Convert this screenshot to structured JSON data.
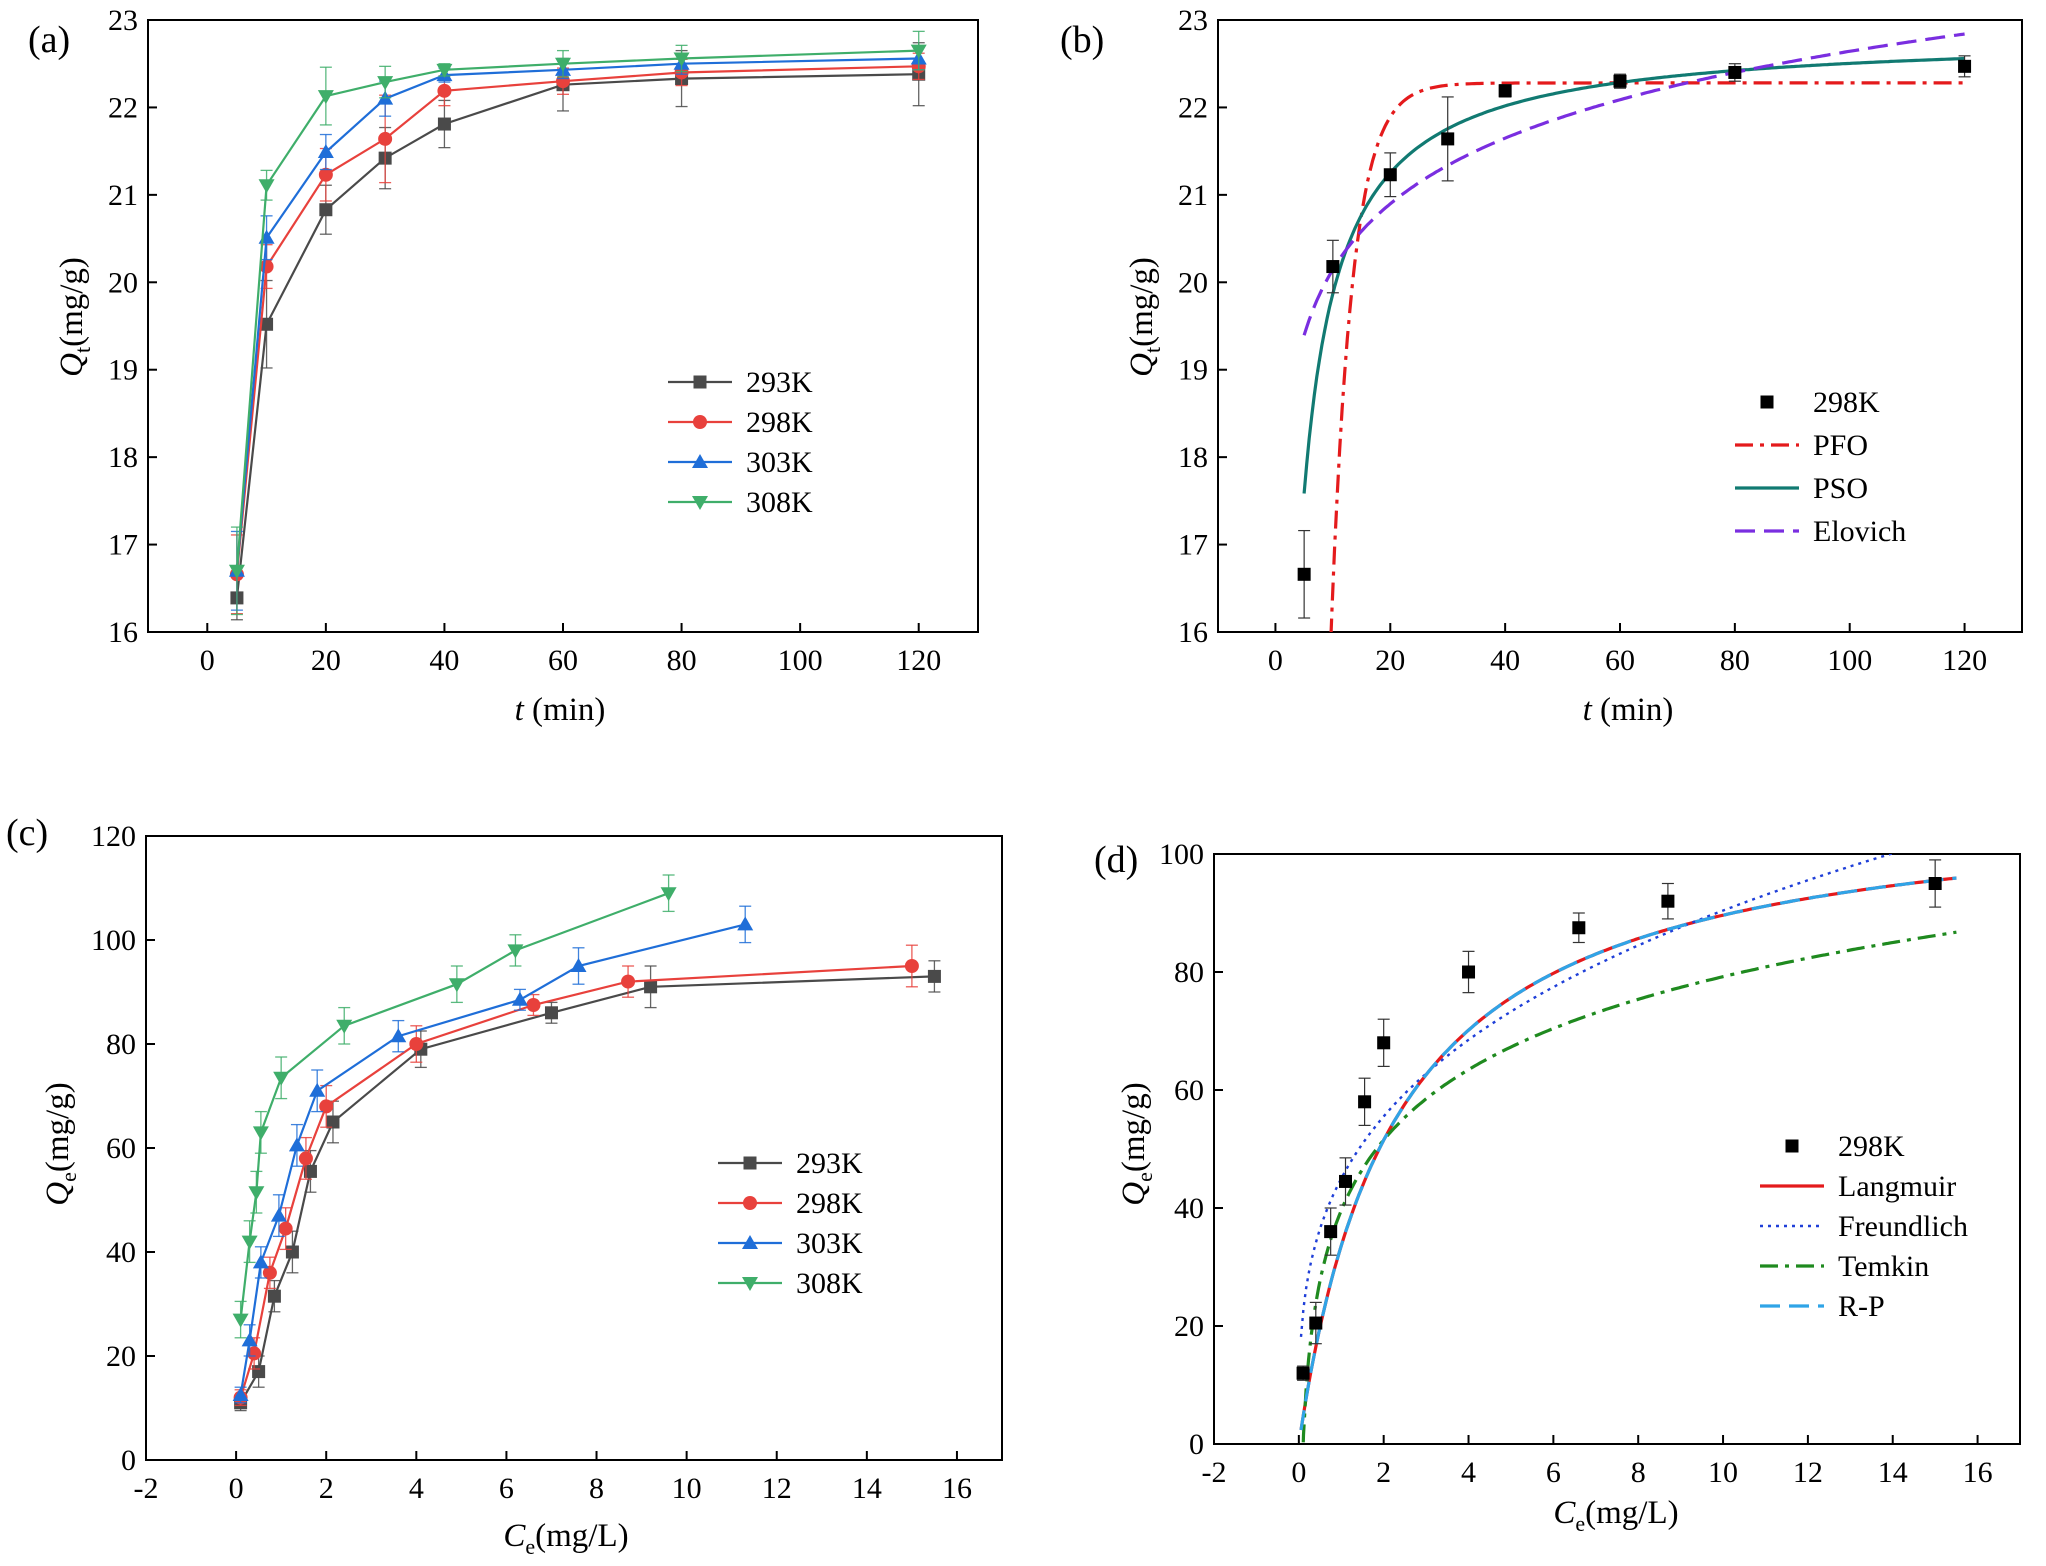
{
  "chart_data": [
    {
      "panel_label": "(a)",
      "type": "line",
      "xlabel": {
        "main": "t",
        "rest": " (min)"
      },
      "ylabel": {
        "main": "Q",
        "sub": "t",
        "rest": "(mg/g)"
      },
      "xlim": [
        -10,
        130
      ],
      "ylim": [
        16,
        23
      ],
      "xticks": [
        "0",
        "20",
        "40",
        "60",
        "80",
        "100",
        "120"
      ],
      "yticks": [
        "16",
        "17",
        "18",
        "19",
        "20",
        "21",
        "22",
        "23"
      ],
      "legend_position": "right",
      "series": [
        {
          "name": "293K",
          "color": "#4a4a4a",
          "marker": "square",
          "x": [
            5,
            10,
            20,
            30,
            40,
            60,
            80,
            120
          ],
          "y": [
            16.39,
            19.52,
            20.83,
            21.42,
            21.81,
            22.26,
            22.33,
            22.38
          ],
          "err": [
            0.25,
            0.5,
            0.28,
            0.35,
            0.27,
            0.3,
            0.32,
            0.36
          ]
        },
        {
          "name": "298K",
          "color": "#e8413c",
          "marker": "circle",
          "x": [
            5,
            10,
            20,
            30,
            40,
            60,
            80,
            120
          ],
          "y": [
            16.66,
            20.18,
            21.23,
            21.64,
            22.19,
            22.3,
            22.4,
            22.47
          ],
          "err": [
            0.45,
            0.25,
            0.3,
            0.5,
            0.17,
            0.15,
            0.15,
            0.15
          ]
        },
        {
          "name": "303K",
          "color": "#1f6ed8",
          "marker": "triangle-up",
          "x": [
            5,
            10,
            20,
            30,
            40,
            60,
            80,
            120
          ],
          "y": [
            16.7,
            20.51,
            21.49,
            22.1,
            22.37,
            22.43,
            22.5,
            22.56
          ],
          "err": [
            0.45,
            0.25,
            0.2,
            0.2,
            0.08,
            0.1,
            0.12,
            0.13
          ]
        },
        {
          "name": "308K",
          "color": "#3fae6a",
          "marker": "triangle-down",
          "x": [
            5,
            10,
            20,
            30,
            40,
            60,
            80,
            120
          ],
          "y": [
            16.7,
            21.11,
            22.13,
            22.29,
            22.43,
            22.5,
            22.56,
            22.65
          ],
          "err": [
            0.5,
            0.17,
            0.33,
            0.18,
            0.07,
            0.15,
            0.15,
            0.22
          ]
        }
      ]
    },
    {
      "panel_label": "(b)",
      "type": "scatter",
      "xlabel": {
        "main": "t",
        "rest": " (min)"
      },
      "ylabel": {
        "main": "Q",
        "sub": "t",
        "rest": "(mg/g)"
      },
      "xlim": [
        -10,
        130
      ],
      "ylim": [
        16,
        23
      ],
      "xticks": [
        "0",
        "20",
        "40",
        "60",
        "80",
        "100",
        "120"
      ],
      "yticks": [
        "16",
        "17",
        "18",
        "19",
        "20",
        "21",
        "22",
        "23"
      ],
      "legend_position": "right",
      "points": {
        "name": "298K",
        "color": "#000000",
        "marker": "square",
        "x": [
          5,
          10,
          20,
          30,
          40,
          60,
          80,
          120
        ],
        "y": [
          16.66,
          20.18,
          21.23,
          21.64,
          22.19,
          22.3,
          22.4,
          22.47
        ],
        "err": [
          0.5,
          0.3,
          0.25,
          0.48,
          0.07,
          0.08,
          0.1,
          0.12
        ]
      },
      "fits": [
        {
          "name": "PFO",
          "color": "#e41a1c",
          "dash": "dashdot",
          "model": "pfo",
          "qe": 22.28,
          "k1": 0.27,
          "t0": 5,
          "x_range": [
            5,
            120
          ]
        },
        {
          "name": "PSO",
          "color": "#117a72",
          "dash": "solid",
          "model": "pso",
          "qe": 22.84,
          "k2": 0.0293,
          "x_range": [
            5,
            120
          ]
        },
        {
          "name": "Elovich",
          "color": "#7a2ee0",
          "dash": "dash",
          "model": "elovich",
          "a": 17.65,
          "b": 1.084,
          "x_range": [
            5,
            120
          ]
        }
      ]
    },
    {
      "panel_label": "(c)",
      "type": "line",
      "xlabel": {
        "main": "C",
        "sub": "e",
        "rest": "(mg/L)"
      },
      "ylabel": {
        "main": "Q",
        "sub": "e",
        "rest": "(mg/g)"
      },
      "xlim": [
        -2,
        17
      ],
      "ylim": [
        0,
        120
      ],
      "xticks": [
        "-2",
        "0",
        "2",
        "4",
        "6",
        "8",
        "10",
        "12",
        "14",
        "16"
      ],
      "yticks": [
        "0",
        "20",
        "40",
        "60",
        "80",
        "100",
        "120"
      ],
      "legend_position": "right",
      "series": [
        {
          "name": "293K",
          "color": "#4a4a4a",
          "marker": "square",
          "x": [
            0.1,
            0.5,
            0.85,
            1.25,
            1.65,
            2.15,
            4.1,
            7.0,
            9.2,
            15.5
          ],
          "y": [
            11,
            17,
            31.5,
            40,
            55.5,
            65,
            79,
            86,
            91,
            93
          ],
          "err": [
            1.5,
            3,
            3,
            4,
            4,
            4,
            3.5,
            2,
            4,
            3
          ]
        },
        {
          "name": "298K",
          "color": "#e8413c",
          "marker": "circle",
          "x": [
            0.1,
            0.4,
            0.75,
            1.1,
            1.55,
            2.0,
            4.0,
            6.6,
            8.7,
            15.0
          ],
          "y": [
            12,
            20.5,
            36,
            44.5,
            58,
            68,
            80,
            87.5,
            92,
            95
          ],
          "err": [
            1.5,
            3,
            3,
            4,
            4,
            4,
            3.5,
            2,
            3,
            4
          ]
        },
        {
          "name": "303K",
          "color": "#1f6ed8",
          "marker": "triangle-up",
          "x": [
            0.1,
            0.3,
            0.55,
            0.95,
            1.35,
            1.8,
            3.6,
            6.3,
            7.6,
            11.3
          ],
          "y": [
            12.5,
            23,
            38,
            47,
            60.5,
            71,
            81.5,
            88.5,
            95,
            103
          ],
          "err": [
            1.5,
            3,
            3,
            4,
            4,
            4,
            3,
            2,
            3.5,
            3.5
          ]
        },
        {
          "name": "308K",
          "color": "#3fae6a",
          "marker": "triangle-down",
          "x": [
            0.1,
            0.3,
            0.45,
            0.55,
            1.0,
            2.4,
            4.9,
            6.2,
            9.6
          ],
          "y": [
            27,
            42,
            51.5,
            63,
            73.5,
            83.5,
            91.5,
            98,
            109
          ],
          "err": [
            3.5,
            4,
            4,
            4,
            4,
            3.5,
            3.5,
            3,
            3.5
          ]
        }
      ]
    },
    {
      "panel_label": "(d)",
      "type": "scatter",
      "xlabel": {
        "main": "C",
        "sub": "e",
        "rest": "(mg/L)"
      },
      "ylabel": {
        "main": "Q",
        "sub": "e",
        "rest": "(mg/g)"
      },
      "xlim": [
        -2,
        17
      ],
      "ylim": [
        0,
        100
      ],
      "xticks": [
        "-2",
        "0",
        "2",
        "4",
        "6",
        "8",
        "10",
        "12",
        "14",
        "16"
      ],
      "yticks": [
        "0",
        "20",
        "40",
        "60",
        "80",
        "100"
      ],
      "legend_position": "right",
      "points": {
        "name": "298K",
        "color": "#000000",
        "marker": "square",
        "x": [
          0.1,
          0.4,
          0.75,
          1.1,
          1.55,
          2.0,
          4.0,
          6.6,
          8.7,
          15.0
        ],
        "y": [
          12,
          20.5,
          36,
          44.5,
          58,
          68,
          80,
          87.5,
          92,
          95
        ],
        "err": [
          1.2,
          3.5,
          4,
          4,
          4,
          4,
          3.5,
          2.5,
          3,
          4
        ]
      },
      "fits": [
        {
          "name": "Langmuir",
          "color": "#e41a1c",
          "dash": "solid",
          "model": "langmuir",
          "qm": 110,
          "KL": 0.44,
          "x_range": [
            0.05,
            15.5
          ]
        },
        {
          "name": "Freundlich",
          "color": "#1f3fd8",
          "dash": "dot",
          "model": "freundlich",
          "KF": 45,
          "n": 3.3,
          "x_range": [
            0.05,
            15.5
          ]
        },
        {
          "name": "Temkin",
          "color": "#1f8a1f",
          "dash": "dashdot",
          "model": "temkin",
          "A": 10,
          "B": 17.2,
          "x_range": [
            0.05,
            15.5
          ]
        },
        {
          "name": "R-P",
          "color": "#2fa4e7",
          "dash": "dash",
          "model": "langmuir",
          "qm": 110,
          "KL": 0.44,
          "x_range": [
            0.05,
            15.5
          ]
        }
      ]
    }
  ]
}
